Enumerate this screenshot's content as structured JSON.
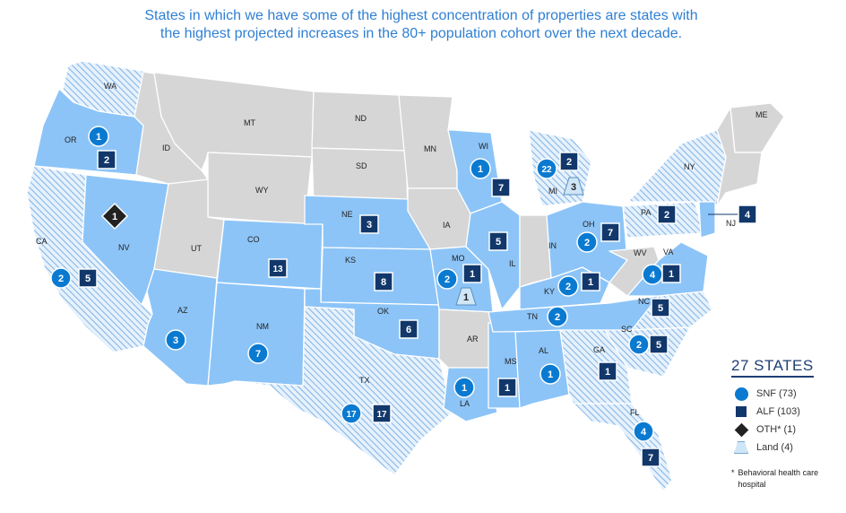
{
  "headline": "States in which we have some of the highest concentration of properties are states with the highest projected increases in the 80+ population cohort over the next decade.",
  "colors": {
    "solid_state": "#8cc4f7",
    "hatched_state": "#9fc9f0",
    "gray_state": "#d6d6d6",
    "snf": "#0a7ad1",
    "alf": "#12386b",
    "oth": "#222222",
    "land": "#cfe6f7"
  },
  "legend": {
    "title": "27 STATES",
    "items": [
      {
        "symbol": "circle-icon",
        "label": "SNF (73)"
      },
      {
        "symbol": "square-icon",
        "label": "ALF (103)"
      },
      {
        "symbol": "diamond-icon",
        "label": "OTH* (1)"
      },
      {
        "symbol": "land-icon",
        "label": "Land (4)"
      }
    ],
    "footnote_star": "*",
    "footnote": "Behavioral health care hospital"
  },
  "state_labels": [
    "WA",
    "OR",
    "CA",
    "NV",
    "ID",
    "MT",
    "WY",
    "UT",
    "AZ",
    "CO",
    "NM",
    "ND",
    "SD",
    "NE",
    "KS",
    "OK",
    "TX",
    "MN",
    "IA",
    "MO",
    "AR",
    "LA",
    "WI",
    "IL",
    "MS",
    "MI",
    "IN",
    "KY",
    "TN",
    "AL",
    "OH",
    "GA",
    "FL",
    "WV",
    "VA",
    "NC",
    "SC",
    "PA",
    "NY",
    "NJ",
    "ME"
  ],
  "markers": [
    {
      "state": "OR",
      "type": "SNF",
      "value": "1"
    },
    {
      "state": "OR",
      "type": "ALF",
      "value": "2"
    },
    {
      "state": "NV",
      "type": "OTH",
      "value": "1"
    },
    {
      "state": "CA",
      "type": "SNF",
      "value": "2"
    },
    {
      "state": "CA",
      "type": "ALF",
      "value": "5"
    },
    {
      "state": "AZ",
      "type": "SNF",
      "value": "3"
    },
    {
      "state": "CO",
      "type": "ALF",
      "value": "13"
    },
    {
      "state": "NM",
      "type": "SNF",
      "value": "7"
    },
    {
      "state": "NE",
      "type": "ALF",
      "value": "3"
    },
    {
      "state": "KS",
      "type": "ALF",
      "value": "8"
    },
    {
      "state": "OK",
      "type": "ALF",
      "value": "6"
    },
    {
      "state": "TX",
      "type": "SNF",
      "value": "17"
    },
    {
      "state": "TX",
      "type": "ALF",
      "value": "17"
    },
    {
      "state": "WI",
      "type": "SNF",
      "value": "1"
    },
    {
      "state": "WI",
      "type": "ALF",
      "value": "7"
    },
    {
      "state": "MO",
      "type": "SNF",
      "value": "2"
    },
    {
      "state": "MO",
      "type": "ALF",
      "value": "1"
    },
    {
      "state": "MO",
      "type": "LAND",
      "value": "1"
    },
    {
      "state": "IL",
      "type": "ALF",
      "value": "5"
    },
    {
      "state": "LA",
      "type": "SNF",
      "value": "1"
    },
    {
      "state": "MS",
      "type": "ALF",
      "value": "1"
    },
    {
      "state": "AL",
      "type": "SNF",
      "value": "1"
    },
    {
      "state": "MI",
      "type": "SNF",
      "value": "22"
    },
    {
      "state": "MI",
      "type": "ALF",
      "value": "2"
    },
    {
      "state": "MI",
      "type": "LAND",
      "value": "3"
    },
    {
      "state": "OH",
      "type": "SNF",
      "value": "2"
    },
    {
      "state": "OH",
      "type": "ALF",
      "value": "7"
    },
    {
      "state": "KY",
      "type": "SNF",
      "value": "2"
    },
    {
      "state": "KY",
      "type": "ALF",
      "value": "1"
    },
    {
      "state": "TN",
      "type": "SNF",
      "value": "2"
    },
    {
      "state": "VA",
      "type": "SNF",
      "value": "4"
    },
    {
      "state": "VA",
      "type": "ALF",
      "value": "1"
    },
    {
      "state": "NC",
      "type": "ALF",
      "value": "5"
    },
    {
      "state": "SC",
      "type": "SNF",
      "value": "2"
    },
    {
      "state": "SC",
      "type": "ALF",
      "value": "5"
    },
    {
      "state": "GA",
      "type": "ALF",
      "value": "1"
    },
    {
      "state": "FL",
      "type": "SNF",
      "value": "4"
    },
    {
      "state": "FL",
      "type": "ALF",
      "value": "7"
    },
    {
      "state": "PA",
      "type": "ALF",
      "value": "2"
    },
    {
      "state": "NJ",
      "type": "ALF",
      "value": "4"
    }
  ]
}
